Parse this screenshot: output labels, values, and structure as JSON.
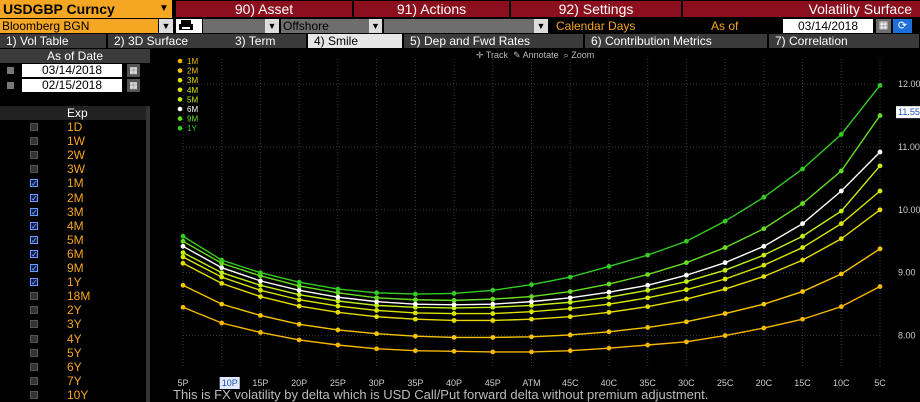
{
  "header": {
    "ticker": "USDGBP Curncy",
    "menus": [
      {
        "num": "90)",
        "label": "Asset"
      },
      {
        "num": "91)",
        "label": "Actions"
      },
      {
        "num": "92)",
        "label": "Settings"
      }
    ],
    "title": "Volatility Surface"
  },
  "controls": {
    "source": "Bloomberg BGN",
    "location": "Offshore",
    "calendar": "Calendar Days",
    "as_of_label": "As of",
    "as_of_date": "03/14/2018"
  },
  "tabs": [
    {
      "label": "1) Vol Table",
      "active": false
    },
    {
      "label": "2) 3D Surface",
      "active": false
    },
    {
      "label": "3) Term",
      "active": false
    },
    {
      "label": "4) Smile",
      "active": true
    },
    {
      "label": "5) Dep and Fwd Rates",
      "active": false
    },
    {
      "label": "6) Contribution Metrics",
      "active": false
    },
    {
      "label": "7) Correlation",
      "active": false
    }
  ],
  "left_panel": {
    "as_of_header": "As of Date",
    "dates": [
      "03/14/2018",
      "02/15/2018"
    ],
    "exp_header": "Exp",
    "expiries": [
      {
        "label": "1D",
        "checked": false
      },
      {
        "label": "1W",
        "checked": false
      },
      {
        "label": "2W",
        "checked": false
      },
      {
        "label": "3W",
        "checked": false
      },
      {
        "label": "1M",
        "checked": true
      },
      {
        "label": "2M",
        "checked": true
      },
      {
        "label": "3M",
        "checked": true
      },
      {
        "label": "4M",
        "checked": true
      },
      {
        "label": "5M",
        "checked": true
      },
      {
        "label": "6M",
        "checked": true
      },
      {
        "label": "9M",
        "checked": true
      },
      {
        "label": "1Y",
        "checked": true
      },
      {
        "label": "18M",
        "checked": false
      },
      {
        "label": "2Y",
        "checked": false
      },
      {
        "label": "3Y",
        "checked": false
      },
      {
        "label": "4Y",
        "checked": false
      },
      {
        "label": "5Y",
        "checked": false
      },
      {
        "label": "6Y",
        "checked": false
      },
      {
        "label": "7Y",
        "checked": false
      },
      {
        "label": "10Y",
        "checked": false
      }
    ]
  },
  "toolbar": {
    "track": "Track",
    "annotate": "Annotate",
    "zoom": "Zoom"
  },
  "chart_data": {
    "type": "line",
    "categories": [
      "5P",
      "10P",
      "15P",
      "20P",
      "25P",
      "30P",
      "35P",
      "40P",
      "45P",
      "ATM",
      "45C",
      "40C",
      "35C",
      "30C",
      "25C",
      "20C",
      "15C",
      "10C",
      "5C"
    ],
    "ylim": [
      7.5,
      12.4
    ],
    "yticks": [
      "8.00",
      "9.00",
      "10.00",
      "11.00",
      "12.00"
    ],
    "ytick_values": [
      8,
      9,
      10,
      11,
      12
    ],
    "last_price_label": "11.5544",
    "last_price_value": 11.5544,
    "legend_position": "top-left",
    "grid": true,
    "highlighted_category": "10P",
    "series": [
      {
        "name": "1M",
        "color": "#f5b800",
        "values": [
          8.45,
          8.2,
          8.05,
          7.93,
          7.85,
          7.79,
          7.76,
          7.75,
          7.74,
          7.74,
          7.76,
          7.8,
          7.85,
          7.9,
          8.0,
          8.12,
          8.26,
          8.46,
          8.78
        ]
      },
      {
        "name": "2M",
        "color": "#f5c400",
        "values": [
          8.8,
          8.5,
          8.32,
          8.18,
          8.09,
          8.03,
          7.99,
          7.97,
          7.97,
          7.98,
          8.01,
          8.06,
          8.13,
          8.22,
          8.35,
          8.5,
          8.7,
          8.98,
          9.38
        ]
      },
      {
        "name": "3M",
        "color": "#e6dd00",
        "values": [
          9.15,
          8.83,
          8.62,
          8.47,
          8.37,
          8.3,
          8.26,
          8.24,
          8.24,
          8.26,
          8.3,
          8.37,
          8.46,
          8.58,
          8.74,
          8.94,
          9.2,
          9.54,
          10.0
        ]
      },
      {
        "name": "4M",
        "color": "#d9e600",
        "values": [
          9.25,
          8.93,
          8.72,
          8.57,
          8.47,
          8.4,
          8.36,
          8.35,
          8.35,
          8.38,
          8.43,
          8.5,
          8.6,
          8.73,
          8.9,
          9.12,
          9.4,
          9.78,
          10.3
        ]
      },
      {
        "name": "5M",
        "color": "#c3ef1a",
        "values": [
          9.32,
          9.0,
          8.8,
          8.65,
          8.55,
          8.48,
          8.45,
          8.44,
          8.45,
          8.48,
          8.53,
          8.61,
          8.72,
          8.86,
          9.04,
          9.28,
          9.58,
          9.98,
          10.7
        ]
      },
      {
        "name": "6M",
        "color": "#ffffff",
        "values": [
          9.42,
          9.08,
          8.87,
          8.72,
          8.61,
          8.54,
          8.5,
          8.49,
          8.5,
          8.54,
          8.6,
          8.69,
          8.8,
          8.96,
          9.16,
          9.42,
          9.78,
          10.3,
          10.92
        ]
      },
      {
        "name": "9M",
        "color": "#66dd22",
        "values": [
          9.5,
          9.15,
          8.95,
          8.79,
          8.68,
          8.6,
          8.57,
          8.56,
          8.58,
          8.62,
          8.7,
          8.82,
          8.97,
          9.16,
          9.4,
          9.7,
          10.1,
          10.62,
          11.5
        ]
      },
      {
        "name": "1Y",
        "color": "#33cc22",
        "values": [
          9.58,
          9.2,
          9.0,
          8.85,
          8.74,
          8.68,
          8.66,
          8.67,
          8.72,
          8.81,
          8.93,
          9.1,
          9.28,
          9.5,
          9.82,
          10.2,
          10.65,
          11.2,
          11.98
        ]
      }
    ]
  },
  "footer": {
    "note": "This is FX volatility by delta which is USD Call/Put forward delta without premium adjustment."
  }
}
